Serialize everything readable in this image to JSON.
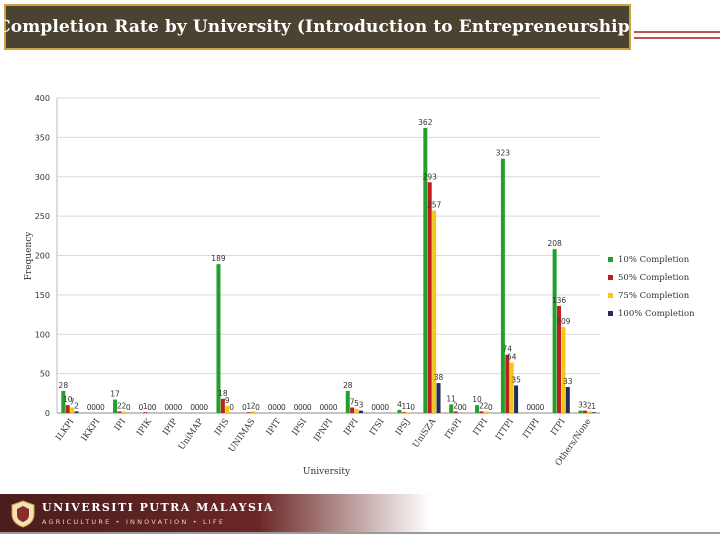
{
  "title": "Completion Rate by University (Introduction to Entrepreneurship)",
  "colors": {
    "title_bg": "#4a4331",
    "title_border": "#c9a441",
    "rule": "#c0504d",
    "footer_band": "#5a2222"
  },
  "footer": {
    "name": "UNIVERSITI PUTRA MALAYSIA",
    "tagline": "AGRICULTURE • INNOVATION • LIFE",
    "logo_icon": "upm-crest-icon"
  },
  "chart_data": {
    "type": "bar",
    "xlabel": "University",
    "ylabel": "Frequency",
    "ylim": [
      0,
      400
    ],
    "yticks": [
      0,
      50,
      100,
      150,
      200,
      250,
      300,
      350,
      400
    ],
    "grid": true,
    "legend_position": "right",
    "categories": [
      "ILKPI",
      "IKKPI",
      "IPI",
      "IPIK",
      "IPIP",
      "UniMAP",
      "IPIS",
      "UNIMAS",
      "IPIT",
      "IPSI",
      "IPNPI",
      "IPPI",
      "ITSI",
      "IPSJ",
      "UniSZA",
      "ITePI",
      "ITPI",
      "ITTPI",
      "ITIPI",
      "ITPI",
      "Others/None"
    ],
    "series": [
      {
        "name": "10% Completion",
        "color": "#22a02b",
        "values": [
          28,
          0,
          17,
          0,
          0,
          0,
          189,
          0,
          0,
          0,
          0,
          28,
          0,
          4,
          362,
          11,
          10,
          323,
          0,
          208,
          3
        ]
      },
      {
        "name": "50% Completion",
        "color": "#c0201d",
        "values": [
          10,
          0,
          2,
          1,
          0,
          0,
          18,
          1,
          0,
          0,
          0,
          7,
          0,
          1,
          293,
          2,
          2,
          74,
          0,
          136,
          3
        ]
      },
      {
        "name": "75% Completion",
        "color": "#f5c518",
        "values": [
          7,
          0,
          2,
          0,
          0,
          0,
          9,
          2,
          0,
          0,
          0,
          5,
          0,
          1,
          257,
          0,
          2,
          64,
          0,
          109,
          2
        ]
      },
      {
        "name": "100% Completion",
        "color": "#1f2d5c",
        "values": [
          2,
          0,
          0,
          0,
          0,
          0,
          0,
          0,
          0,
          0,
          0,
          3,
          0,
          0,
          38,
          0,
          0,
          35,
          0,
          33,
          1
        ]
      }
    ]
  }
}
